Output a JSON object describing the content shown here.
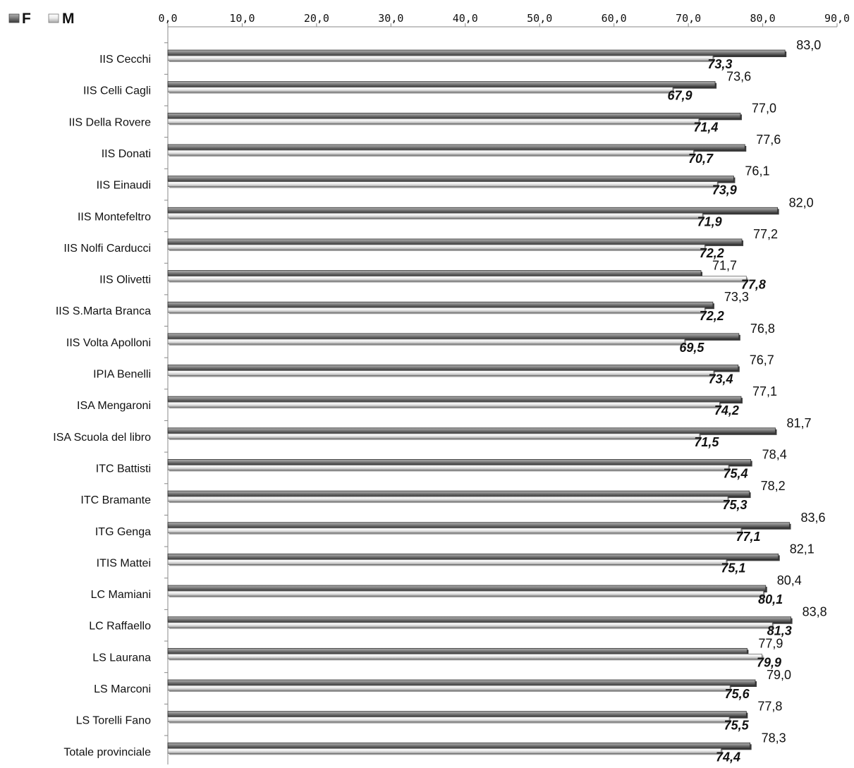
{
  "chart_data": {
    "type": "bar",
    "orientation": "horizontal",
    "title": "",
    "xlabel": "",
    "ylabel": "",
    "xlim": [
      0,
      90
    ],
    "x_ticks": [
      "0,0",
      "10,0",
      "20,0",
      "30,0",
      "40,0",
      "50,0",
      "60,0",
      "70,0",
      "80,0",
      "90,0"
    ],
    "x_axis_position": "top",
    "grid": false,
    "legend_position": "top-left",
    "categories": [
      "IIS Cecchi",
      "IIS Celli Cagli",
      "IIS Della Rovere",
      "IIS Donati",
      "IIS Einaudi",
      "IIS Montefeltro",
      "IIS Nolfi Carducci",
      "IIS Olivetti",
      "IIS S.Marta Branca",
      "IIS Volta Apolloni",
      "IPIA Benelli",
      "ISA Mengaroni",
      "ISA Scuola del libro",
      "ITC Battisti",
      "ITC Bramante",
      "ITG Genga",
      "ITIS Mattei",
      "LC Mamiani",
      "LC Raffaello",
      "LS Laurana",
      "LS Marconi",
      "LS Torelli Fano",
      "Totale provinciale"
    ],
    "series": [
      {
        "name": "F",
        "color": "#6e6e6e",
        "values": [
          83.0,
          73.6,
          77.0,
          77.6,
          76.1,
          82.0,
          77.2,
          71.7,
          73.3,
          76.8,
          76.7,
          77.1,
          81.7,
          78.4,
          78.2,
          83.6,
          82.1,
          80.4,
          83.8,
          77.9,
          79.0,
          77.8,
          78.3
        ],
        "labels": [
          "83,0",
          "73,6",
          "77,0",
          "77,6",
          "76,1",
          "82,0",
          "77,2",
          "71,7",
          "73,3",
          "76,8",
          "76,7",
          "77,1",
          "81,7",
          "78,4",
          "78,2",
          "83,6",
          "82,1",
          "80,4",
          "83,8",
          "77,9",
          "79,0",
          "77,8",
          "78,3"
        ]
      },
      {
        "name": "M",
        "color": "#d2d2d2",
        "values": [
          73.3,
          67.9,
          71.4,
          70.7,
          73.9,
          71.9,
          72.2,
          77.8,
          72.2,
          69.5,
          73.4,
          74.2,
          71.5,
          75.4,
          75.3,
          77.1,
          75.1,
          80.1,
          81.3,
          79.9,
          75.6,
          75.5,
          74.4
        ],
        "labels": [
          "73,3",
          "67,9",
          "71,4",
          "70,7",
          "73,9",
          "71,9",
          "72,2",
          "77,8",
          "72,2",
          "69,5",
          "73,4",
          "74,2",
          "71,5",
          "75,4",
          "75,3",
          "77,1",
          "75,1",
          "80,1",
          "81,3",
          "79,9",
          "75,6",
          "75,5",
          "74,4"
        ]
      }
    ]
  }
}
